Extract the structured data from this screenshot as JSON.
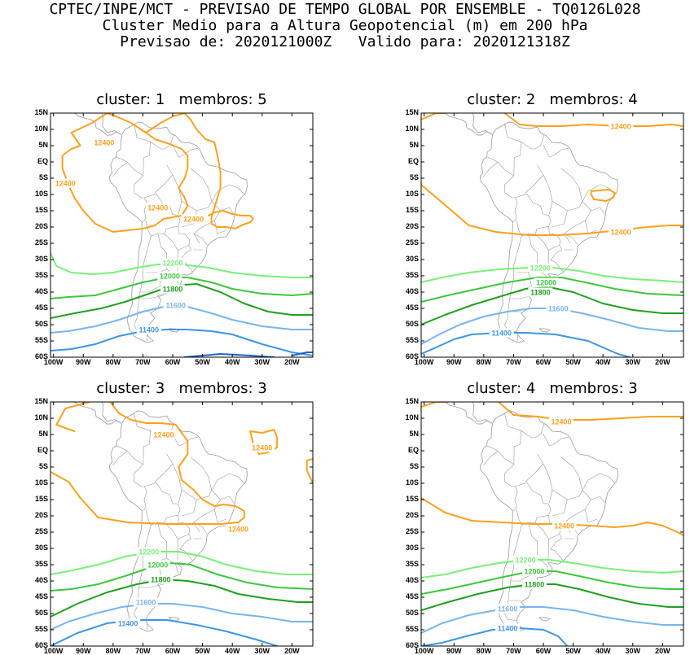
{
  "header": {
    "line1": "CPTEC/INPE/MCT - PREVISAO DE TEMPO GLOBAL POR ENSEMBLE - TQ0126L028",
    "line2": "Cluster Medio para a Altura Geopotencial (m) em 200 hPa",
    "line3": "Previsao de: 2020121000Z   Valido para: 2020121318Z"
  },
  "axes": {
    "lat_labels": [
      "15N",
      "10N",
      "5N",
      "EQ",
      "5S",
      "10S",
      "15S",
      "20S",
      "25S",
      "30S",
      "35S",
      "40S",
      "45S",
      "50S",
      "55S",
      "60S"
    ],
    "lon_labels": [
      "100W",
      "90W",
      "80W",
      "70W",
      "60W",
      "50W",
      "40W",
      "30W",
      "20W"
    ]
  },
  "colors": {
    "c12400": "#ffa01e",
    "c12200": "#78f078",
    "c12000": "#3cc83c",
    "c11800": "#1ea01e",
    "c11600": "#78b4f0",
    "c11400": "#3c96e6",
    "coast": "#9a9a9a"
  },
  "contour_labels": {
    "c12400": "12400",
    "c12200": "12200",
    "c12000": "12000",
    "c11800": "11800",
    "c11600": "11600",
    "c11400": "11400"
  },
  "panels": [
    {
      "title": "cluster: 1   membros: 5"
    },
    {
      "title": "cluster: 2   membros: 4"
    },
    {
      "title": "cluster: 3   membros: 3"
    },
    {
      "title": "cluster: 4   membros: 3"
    }
  ]
}
